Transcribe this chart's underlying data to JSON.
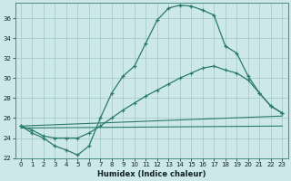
{
  "xlabel": "Humidex (Indice chaleur)",
  "bg_color": "#cce8e8",
  "grid_color": "#aacccc",
  "line_color": "#2a7a6a",
  "xlim": [
    -0.5,
    23.5
  ],
  "ylim": [
    22,
    37.5
  ],
  "yticks": [
    22,
    24,
    26,
    28,
    30,
    32,
    34,
    36
  ],
  "xticks": [
    0,
    1,
    2,
    3,
    4,
    5,
    6,
    7,
    8,
    9,
    10,
    11,
    12,
    13,
    14,
    15,
    16,
    17,
    18,
    19,
    20,
    21,
    22,
    23
  ],
  "series1_x": [
    0,
    1,
    2,
    3,
    4,
    5,
    6,
    7,
    8,
    9,
    10,
    11,
    12,
    13,
    14,
    15,
    16,
    17,
    18,
    19,
    20,
    21,
    22,
    23
  ],
  "series1_y": [
    25.2,
    24.5,
    24.0,
    23.2,
    22.8,
    22.3,
    23.2,
    26.0,
    28.5,
    30.2,
    31.2,
    33.5,
    35.8,
    37.0,
    37.3,
    37.2,
    36.8,
    36.3,
    33.2,
    32.5,
    30.2,
    28.5,
    27.2,
    26.5
  ],
  "series2_x": [
    0,
    1,
    2,
    3,
    4,
    5,
    6,
    7,
    8,
    9,
    10,
    11,
    12,
    13,
    14,
    15,
    16,
    17,
    18,
    19,
    20,
    21,
    22,
    23
  ],
  "series2_y": [
    25.2,
    24.8,
    24.2,
    24.0,
    24.0,
    24.0,
    24.5,
    25.2,
    26.0,
    26.8,
    27.5,
    28.2,
    28.8,
    29.4,
    30.0,
    30.5,
    31.0,
    31.2,
    30.8,
    30.5,
    29.8,
    28.5,
    27.2,
    26.5
  ],
  "series3_x": [
    0,
    23
  ],
  "series3_y": [
    25.2,
    26.2
  ],
  "series4_x": [
    0,
    23
  ],
  "series4_y": [
    25.0,
    25.2
  ]
}
